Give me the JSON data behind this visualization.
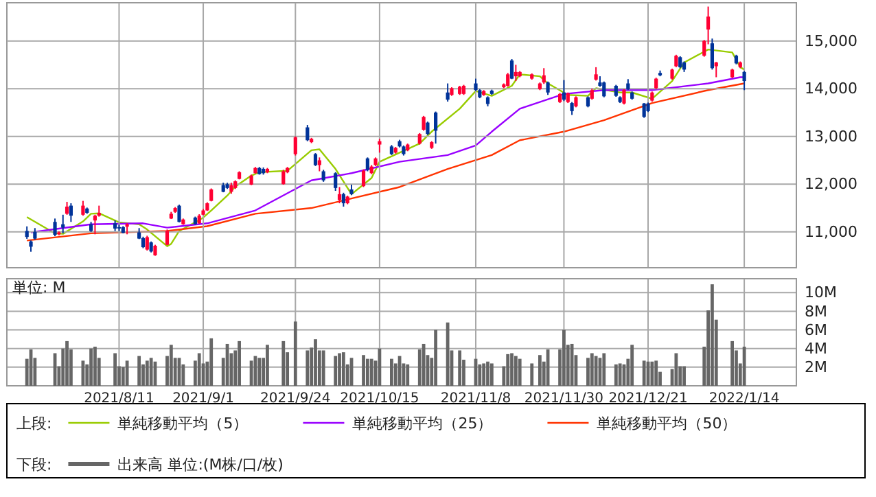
{
  "chart_data": [
    {
      "type": "candlestick",
      "legend_title": "上段:",
      "legend": "bottom",
      "grid": true,
      "tick_labels": "y",
      "xlim": [
        "2021-07-14",
        "2022-01-27"
      ],
      "ylim": [
        10250,
        15800
      ],
      "xticks": [
        {
          "value": "2021-08-11",
          "label": null
        },
        {
          "value": "2021-09-01",
          "label": null
        },
        {
          "value": "2021-09-24",
          "label": null
        },
        {
          "value": "2021-10-15",
          "label": null
        },
        {
          "value": "2021-11-08",
          "label": null
        },
        {
          "value": "2021-11-30",
          "label": null
        },
        {
          "value": "2021-12-21",
          "label": null
        },
        {
          "value": "2022-01-14",
          "label": null
        }
      ],
      "yticks": [
        {
          "value": 11000,
          "label": "11,000"
        },
        {
          "value": 12000,
          "label": "12,000"
        },
        {
          "value": 13000,
          "label": "13,000"
        },
        {
          "value": 14000,
          "label": "14,000"
        },
        {
          "value": 15000,
          "label": "15,000"
        }
      ],
      "x": [
        "2021-07-19",
        "2021-07-20",
        "2021-07-21",
        "2021-07-26",
        "2021-07-27",
        "2021-07-28",
        "2021-07-29",
        "2021-07-30",
        "2021-08-02",
        "2021-08-03",
        "2021-08-04",
        "2021-08-05",
        "2021-08-06",
        "2021-08-10",
        "2021-08-11",
        "2021-08-12",
        "2021-08-13",
        "2021-08-16",
        "2021-08-17",
        "2021-08-18",
        "2021-08-19",
        "2021-08-20",
        "2021-08-23",
        "2021-08-24",
        "2021-08-25",
        "2021-08-26",
        "2021-08-27",
        "2021-08-30",
        "2021-08-31",
        "2021-09-01",
        "2021-09-02",
        "2021-09-03",
        "2021-09-06",
        "2021-09-07",
        "2021-09-08",
        "2021-09-09",
        "2021-09-10",
        "2021-09-13",
        "2021-09-14",
        "2021-09-15",
        "2021-09-16",
        "2021-09-17",
        "2021-09-21",
        "2021-09-22",
        "2021-09-24",
        "2021-09-27",
        "2021-09-28",
        "2021-09-29",
        "2021-09-30",
        "2021-10-01",
        "2021-10-04",
        "2021-10-05",
        "2021-10-06",
        "2021-10-07",
        "2021-10-08",
        "2021-10-11",
        "2021-10-12",
        "2021-10-13",
        "2021-10-14",
        "2021-10-15",
        "2021-10-18",
        "2021-10-19",
        "2021-10-20",
        "2021-10-21",
        "2021-10-22",
        "2021-10-25",
        "2021-10-26",
        "2021-10-27",
        "2021-10-28",
        "2021-10-29",
        "2021-11-01",
        "2021-11-02",
        "2021-11-04",
        "2021-11-05",
        "2021-11-08",
        "2021-11-09",
        "2021-11-10",
        "2021-11-11",
        "2021-11-12",
        "2021-11-15",
        "2021-11-16",
        "2021-11-17",
        "2021-11-18",
        "2021-11-19",
        "2021-11-22",
        "2021-11-24",
        "2021-11-25",
        "2021-11-26",
        "2021-11-29",
        "2021-11-30",
        "2021-12-01",
        "2021-12-02",
        "2021-12-03",
        "2021-12-06",
        "2021-12-07",
        "2021-12-08",
        "2021-12-09",
        "2021-12-10",
        "2021-12-13",
        "2021-12-14",
        "2021-12-15",
        "2021-12-16",
        "2021-12-17",
        "2021-12-20",
        "2021-12-21",
        "2021-12-22",
        "2021-12-23",
        "2021-12-24",
        "2021-12-27",
        "2021-12-28",
        "2021-12-29",
        "2021-12-30",
        "2022-01-04",
        "2022-01-05",
        "2022-01-06",
        "2022-01-07",
        "2022-01-11",
        "2022-01-12",
        "2022-01-13",
        "2022-01-14"
      ],
      "ohlc": [
        [
          11020,
          11116,
          10855,
          10894
        ],
        [
          10800,
          10820,
          10585,
          10690
        ],
        [
          11000,
          11080,
          10840,
          10860
        ],
        [
          11210,
          11280,
          10910,
          10940
        ],
        [
          10950,
          11010,
          10930,
          10990
        ],
        [
          11160,
          11360,
          10970,
          11090
        ],
        [
          11380,
          11630,
          11360,
          11530
        ],
        [
          11550,
          11600,
          11210,
          11340
        ],
        [
          11360,
          11650,
          11340,
          11550
        ],
        [
          11490,
          11510,
          11380,
          11400
        ],
        [
          11160,
          11210,
          11000,
          11020
        ],
        [
          11240,
          11360,
          10950,
          11340
        ],
        [
          11340,
          11550,
          11320,
          11400
        ],
        [
          11180,
          11240,
          11020,
          11070
        ],
        [
          11100,
          11150,
          11020,
          11080
        ],
        [
          11100,
          11120,
          10970,
          10980
        ],
        [
          11110,
          11180,
          10950,
          11160
        ],
        [
          10990,
          11080,
          10850,
          10860
        ],
        [
          10870,
          10900,
          10660,
          10680
        ],
        [
          10630,
          10920,
          10610,
          10890
        ],
        [
          10780,
          10800,
          10570,
          10590
        ],
        [
          10510,
          10730,
          10500,
          10710
        ],
        [
          10730,
          11050,
          10720,
          11020
        ],
        [
          11280,
          11420,
          11270,
          11380
        ],
        [
          11420,
          11520,
          11400,
          11500
        ],
        [
          11550,
          11570,
          11200,
          11210
        ],
        [
          11160,
          11280,
          11150,
          11260
        ],
        [
          11300,
          11320,
          11150,
          11160
        ],
        [
          11180,
          11370,
          11170,
          11340
        ],
        [
          11360,
          11480,
          11350,
          11450
        ],
        [
          11450,
          11620,
          11440,
          11600
        ],
        [
          11650,
          11910,
          11640,
          11890
        ],
        [
          11980,
          12030,
          11830,
          11840
        ],
        [
          12000,
          12030,
          11900,
          11920
        ],
        [
          11840,
          12030,
          11800,
          11980
        ],
        [
          11920,
          12080,
          11900,
          12060
        ],
        [
          12110,
          12270,
          12100,
          12250
        ],
        [
          11990,
          12200,
          11980,
          12180
        ],
        [
          12230,
          12360,
          12220,
          12340
        ],
        [
          12340,
          12360,
          12200,
          12210
        ],
        [
          12320,
          12350,
          12200,
          12230
        ],
        [
          12250,
          12340,
          12230,
          12320
        ],
        [
          12000,
          12300,
          11990,
          12270
        ],
        [
          12250,
          12360,
          12230,
          12340
        ],
        [
          12630,
          13000,
          12600,
          12980
        ],
        [
          13190,
          13240,
          12900,
          12920
        ],
        [
          12880,
          12970,
          12860,
          12950
        ],
        [
          12630,
          12650,
          12380,
          12400
        ],
        [
          12400,
          12560,
          12270,
          12500
        ],
        [
          12270,
          12300,
          12050,
          12080
        ],
        [
          12230,
          12250,
          11860,
          11920
        ],
        [
          11670,
          11940,
          11600,
          11790
        ],
        [
          11790,
          11820,
          11530,
          11600
        ],
        [
          11600,
          11760,
          11580,
          11740
        ],
        [
          11890,
          11990,
          11770,
          11790
        ],
        [
          11960,
          12310,
          11940,
          12280
        ],
        [
          12540,
          12560,
          12270,
          12300
        ],
        [
          12230,
          12400,
          12210,
          12370
        ],
        [
          12400,
          12560,
          12380,
          12540
        ],
        [
          12830,
          12950,
          12660,
          12900
        ],
        [
          12790,
          12820,
          12610,
          12630
        ],
        [
          12660,
          12780,
          12640,
          12760
        ],
        [
          12900,
          12930,
          12770,
          12790
        ],
        [
          12790,
          12810,
          12600,
          12630
        ],
        [
          12710,
          12850,
          12690,
          12830
        ],
        [
          12850,
          13070,
          12830,
          13050
        ],
        [
          13140,
          13430,
          13120,
          13410
        ],
        [
          13290,
          13310,
          13030,
          13050
        ],
        [
          12760,
          12900,
          12740,
          12880
        ],
        [
          13500,
          13520,
          12850,
          13120
        ],
        [
          13920,
          14110,
          13730,
          13770
        ],
        [
          13870,
          14030,
          13850,
          14010
        ],
        [
          13890,
          14060,
          13870,
          14040
        ],
        [
          13890,
          14080,
          13870,
          14060
        ],
        [
          14110,
          14210,
          13950,
          13970
        ],
        [
          13970,
          13990,
          13800,
          13820
        ],
        [
          13870,
          13970,
          13850,
          13950
        ],
        [
          13820,
          13840,
          13630,
          13680
        ],
        [
          13960,
          13980,
          13870,
          13890
        ],
        [
          14030,
          14110,
          14010,
          14090
        ],
        [
          14060,
          14330,
          14040,
          14300
        ],
        [
          14590,
          14620,
          14200,
          14210
        ],
        [
          14260,
          14500,
          14160,
          14350
        ],
        [
          14260,
          14370,
          14240,
          14350
        ],
        [
          14210,
          14320,
          14190,
          14300
        ],
        [
          13990,
          14130,
          13970,
          14110
        ],
        [
          14130,
          14430,
          14100,
          14280
        ],
        [
          14130,
          14150,
          13870,
          13920
        ],
        [
          13720,
          13910,
          13700,
          13890
        ],
        [
          13920,
          14180,
          13740,
          13770
        ],
        [
          13720,
          13920,
          13700,
          13900
        ],
        [
          13700,
          13720,
          13450,
          13530
        ],
        [
          13630,
          13840,
          13610,
          13820
        ],
        [
          13820,
          13840,
          13610,
          13630
        ],
        [
          13790,
          14000,
          13770,
          13970
        ],
        [
          14190,
          14450,
          14170,
          14300
        ],
        [
          14130,
          14260,
          14040,
          14060
        ],
        [
          14130,
          14150,
          13820,
          13840
        ],
        [
          14060,
          14080,
          13830,
          13850
        ],
        [
          13820,
          13840,
          13700,
          13720
        ],
        [
          13690,
          13990,
          13670,
          13970
        ],
        [
          14110,
          14200,
          13970,
          13990
        ],
        [
          13920,
          13940,
          13770,
          13790
        ],
        [
          13690,
          13700,
          13390,
          13410
        ],
        [
          13690,
          13710,
          13510,
          13530
        ],
        [
          13750,
          13940,
          13730,
          13920
        ],
        [
          14010,
          14230,
          13990,
          14210
        ],
        [
          14330,
          14380,
          14260,
          14280
        ],
        [
          14210,
          14420,
          14190,
          14400
        ],
        [
          14470,
          14710,
          14450,
          14690
        ],
        [
          14660,
          14680,
          14430,
          14450
        ],
        [
          14550,
          14570,
          14350,
          14400
        ],
        [
          14690,
          15020,
          14670,
          15000
        ],
        [
          15240,
          15720,
          14930,
          15510
        ],
        [
          14950,
          15050,
          14400,
          14430
        ],
        [
          14470,
          14560,
          14240,
          14550
        ],
        [
          14240,
          14420,
          14220,
          14400
        ],
        [
          14690,
          14710,
          14510,
          14530
        ],
        [
          14450,
          14570,
          14430,
          14550
        ],
        [
          14350,
          14370,
          13970,
          14160
        ]
      ],
      "colors": [
        "#003399",
        "#003399",
        "#003399",
        "#003399",
        "#ff0033",
        "#003399",
        "#ff0033",
        "#003399",
        "#ff0033",
        "#003399",
        "#003399",
        "#ff0033",
        "#ff0033",
        "#003399",
        "#003399",
        "#003399",
        "#ff0033",
        "#003399",
        "#003399",
        "#ff0033",
        "#003399",
        "#ff0033",
        "#ff0033",
        "#ff0033",
        "#ff0033",
        "#003399",
        "#ff0033",
        "#003399",
        "#ff0033",
        "#ff0033",
        "#ff0033",
        "#ff0033",
        "#003399",
        "#003399",
        "#ff0033",
        "#ff0033",
        "#ff0033",
        "#ff0033",
        "#ff0033",
        "#003399",
        "#003399",
        "#ff0033",
        "#ff0033",
        "#ff0033",
        "#ff0033",
        "#003399",
        "#ff0033",
        "#003399",
        "#ff0033",
        "#003399",
        "#003399",
        "#ff0033",
        "#003399",
        "#ff0033",
        "#003399",
        "#ff0033",
        "#003399",
        "#ff0033",
        "#ff0033",
        "#ff0033",
        "#003399",
        "#ff0033",
        "#003399",
        "#003399",
        "#ff0033",
        "#ff0033",
        "#ff0033",
        "#003399",
        "#ff0033",
        "#003399",
        "#003399",
        "#ff0033",
        "#ff0033",
        "#ff0033",
        "#003399",
        "#003399",
        "#ff0033",
        "#003399",
        "#003399",
        "#ff0033",
        "#ff0033",
        "#003399",
        "#ff0033",
        "#ff0033",
        "#ff0033",
        "#ff0033",
        "#ff0033",
        "#003399",
        "#ff0033",
        "#003399",
        "#ff0033",
        "#003399",
        "#ff0033",
        "#003399",
        "#ff0033",
        "#ff0033",
        "#003399",
        "#003399",
        "#003399",
        "#003399",
        "#ff0033",
        "#003399",
        "#003399",
        "#003399",
        "#003399",
        "#ff0033",
        "#ff0033",
        "#003399",
        "#ff0033",
        "#ff0033",
        "#003399",
        "#003399",
        "#ff0033",
        "#ff0033",
        "#003399",
        "#ff0033",
        "#ff0033",
        "#003399",
        "#ff0033",
        "#003399"
      ],
      "series": [
        {
          "type": "line",
          "name": "単純移動平均（5）",
          "color": "#99cc00",
          "x": [
            "2021-07-19",
            "2021-07-26",
            "2021-07-28",
            "2021-08-02",
            "2021-08-04",
            "2021-08-06",
            "2021-08-11",
            "2021-08-16",
            "2021-08-18",
            "2021-08-23",
            "2021-08-24",
            "2021-08-26",
            "2021-08-30",
            "2021-09-01",
            "2021-09-03",
            "2021-09-07",
            "2021-09-09",
            "2021-09-13",
            "2021-09-15",
            "2021-09-22",
            "2021-09-28",
            "2021-09-30",
            "2021-10-04",
            "2021-10-08",
            "2021-10-13",
            "2021-10-15",
            "2021-10-20",
            "2021-10-25",
            "2021-10-28",
            "2021-11-04",
            "2021-11-08",
            "2021-11-12",
            "2021-11-17",
            "2021-11-19",
            "2021-11-24",
            "2021-11-26",
            "2021-12-01",
            "2021-12-06",
            "2021-12-08",
            "2021-12-14",
            "2021-12-17",
            "2021-12-22",
            "2021-12-27",
            "2021-12-30",
            "2022-01-05",
            "2022-01-11",
            "2022-01-13",
            "2022-01-14"
          ],
          "values": [
            11310,
            10970,
            10960,
            11220,
            11380,
            11390,
            11200,
            11160,
            11050,
            10700,
            10750,
            11020,
            11200,
            11300,
            11450,
            11760,
            11950,
            12180,
            12250,
            12280,
            12710,
            12730,
            12320,
            11790,
            12130,
            12470,
            12660,
            12850,
            13100,
            13580,
            13950,
            13850,
            14060,
            14300,
            14260,
            14110,
            13870,
            13850,
            14010,
            13920,
            13920,
            13790,
            14160,
            14550,
            14820,
            14760,
            14450,
            14400
          ]
        },
        {
          "type": "line",
          "name": "単純移動平均（25）",
          "color": "#9900ff",
          "x": [
            "2021-07-20",
            "2021-08-04",
            "2021-08-17",
            "2021-08-23",
            "2021-09-02",
            "2021-09-14",
            "2021-09-28",
            "2021-10-08",
            "2021-10-20",
            "2021-11-01",
            "2021-11-08",
            "2021-11-12",
            "2021-11-19",
            "2021-11-30",
            "2021-12-10",
            "2021-12-22",
            "2022-01-05",
            "2022-01-13",
            "2022-01-14"
          ],
          "values": [
            10990,
            11160,
            11180,
            11090,
            11180,
            11450,
            12080,
            12230,
            12470,
            12610,
            12810,
            13100,
            13580,
            13890,
            13970,
            13970,
            14110,
            14240,
            14240
          ]
        },
        {
          "type": "line",
          "name": "単純移動平均（50）",
          "color": "#ff3300",
          "x": [
            "2021-07-19",
            "2021-08-04",
            "2021-08-23",
            "2021-09-02",
            "2021-09-14",
            "2021-09-28",
            "2021-10-08",
            "2021-10-20",
            "2021-11-01",
            "2021-11-12",
            "2021-11-19",
            "2021-11-30",
            "2021-12-10",
            "2021-12-22",
            "2022-01-05",
            "2022-01-14"
          ],
          "values": [
            10820,
            10970,
            11020,
            11120,
            11380,
            11500,
            11700,
            11940,
            12320,
            12610,
            12920,
            13100,
            13340,
            13700,
            13970,
            14110
          ]
        }
      ]
    },
    {
      "type": "bar",
      "legend_title": "下段:",
      "legend": "bottom",
      "grid": true,
      "ylabel": "単位: M",
      "xlim": [
        "2021-07-14",
        "2022-01-27"
      ],
      "ylim": [
        0,
        11.5
      ],
      "xticks": [
        {
          "value": "2021-08-11",
          "label": "2021/8/11"
        },
        {
          "value": "2021-09-01",
          "label": "2021/9/1"
        },
        {
          "value": "2021-09-24",
          "label": "2021/9/24"
        },
        {
          "value": "2021-10-15",
          "label": "2021/10/15"
        },
        {
          "value": "2021-11-08",
          "label": "2021/11/8"
        },
        {
          "value": "2021-11-30",
          "label": "2021/11/30"
        },
        {
          "value": "2021-12-21",
          "label": "2021/12/21"
        },
        {
          "value": "2022-01-14",
          "label": "2022/1/14"
        }
      ],
      "yticks": [
        {
          "value": 2,
          "label": "2M"
        },
        {
          "value": 4,
          "label": "4M"
        },
        {
          "value": 6,
          "label": "6M"
        },
        {
          "value": 8,
          "label": "8M"
        },
        {
          "value": 10,
          "label": "10M"
        }
      ],
      "x": [
        "2021-07-19",
        "2021-07-20",
        "2021-07-21",
        "2021-07-26",
        "2021-07-27",
        "2021-07-28",
        "2021-07-29",
        "2021-07-30",
        "2021-08-02",
        "2021-08-03",
        "2021-08-04",
        "2021-08-05",
        "2021-08-06",
        "2021-08-10",
        "2021-08-11",
        "2021-08-12",
        "2021-08-13",
        "2021-08-16",
        "2021-08-17",
        "2021-08-18",
        "2021-08-19",
        "2021-08-20",
        "2021-08-23",
        "2021-08-24",
        "2021-08-25",
        "2021-08-26",
        "2021-08-27",
        "2021-08-30",
        "2021-08-31",
        "2021-09-01",
        "2021-09-02",
        "2021-09-03",
        "2021-09-06",
        "2021-09-07",
        "2021-09-08",
        "2021-09-09",
        "2021-09-10",
        "2021-09-13",
        "2021-09-14",
        "2021-09-15",
        "2021-09-16",
        "2021-09-17",
        "2021-09-21",
        "2021-09-22",
        "2021-09-24",
        "2021-09-27",
        "2021-09-28",
        "2021-09-29",
        "2021-09-30",
        "2021-10-01",
        "2021-10-04",
        "2021-10-05",
        "2021-10-06",
        "2021-10-07",
        "2021-10-08",
        "2021-10-11",
        "2021-10-12",
        "2021-10-13",
        "2021-10-14",
        "2021-10-15",
        "2021-10-18",
        "2021-10-19",
        "2021-10-20",
        "2021-10-21",
        "2021-10-22",
        "2021-10-25",
        "2021-10-26",
        "2021-10-27",
        "2021-10-28",
        "2021-10-29",
        "2021-11-01",
        "2021-11-02",
        "2021-11-04",
        "2021-11-05",
        "2021-11-08",
        "2021-11-09",
        "2021-11-10",
        "2021-11-11",
        "2021-11-12",
        "2021-11-15",
        "2021-11-16",
        "2021-11-17",
        "2021-11-18",
        "2021-11-19",
        "2021-11-22",
        "2021-11-24",
        "2021-11-25",
        "2021-11-26",
        "2021-11-29",
        "2021-11-30",
        "2021-12-01",
        "2021-12-02",
        "2021-12-03",
        "2021-12-06",
        "2021-12-07",
        "2021-12-08",
        "2021-12-09",
        "2021-12-10",
        "2021-12-13",
        "2021-12-14",
        "2021-12-15",
        "2021-12-16",
        "2021-12-17",
        "2021-12-20",
        "2021-12-21",
        "2021-12-22",
        "2021-12-23",
        "2021-12-24",
        "2021-12-27",
        "2021-12-28",
        "2021-12-29",
        "2021-12-30",
        "2022-01-04",
        "2022-01-05",
        "2022-01-06",
        "2022-01-07",
        "2022-01-11",
        "2022-01-12",
        "2022-01-13",
        "2022-01-14"
      ],
      "series": [
        {
          "name": "出来高 単位:(M株/口/枚)",
          "color": "#666666",
          "values": [
            2.9,
            3.9,
            3.0,
            3.5,
            2.1,
            4.0,
            4.8,
            3.9,
            2.7,
            2.3,
            4.0,
            4.2,
            3.0,
            3.5,
            2.1,
            2.0,
            2.7,
            3.2,
            2.3,
            2.7,
            3.0,
            2.6,
            3.2,
            4.4,
            3.0,
            3.0,
            2.3,
            2.7,
            3.5,
            2.4,
            2.6,
            5.1,
            3.0,
            4.5,
            3.5,
            3.8,
            4.8,
            2.7,
            3.2,
            3.0,
            3.0,
            4.4,
            4.8,
            3.6,
            6.9,
            3.8,
            4.1,
            5.0,
            3.8,
            3.8,
            3.2,
            3.5,
            3.6,
            2.3,
            3.0,
            3.3,
            2.9,
            2.9,
            2.7,
            4.0,
            2.9,
            2.4,
            3.2,
            2.4,
            2.3,
            3.9,
            4.5,
            3.3,
            3.0,
            6.0,
            6.8,
            3.8,
            3.8,
            2.8,
            2.9,
            2.3,
            2.4,
            2.6,
            2.4,
            2.1,
            3.4,
            3.5,
            3.2,
            2.9,
            2.4,
            3.3,
            2.6,
            3.9,
            3.9,
            6.0,
            4.4,
            4.5,
            3.3,
            3.0,
            3.5,
            3.2,
            3.0,
            3.5,
            2.3,
            2.4,
            2.3,
            2.9,
            4.4,
            2.7,
            2.6,
            2.6,
            2.7,
            1.5,
            1.8,
            3.5,
            2.1,
            2.1,
            4.2,
            8.1,
            10.9,
            7.1,
            4.8,
            3.8,
            2.4,
            4.2
          ]
        }
      ]
    }
  ]
}
